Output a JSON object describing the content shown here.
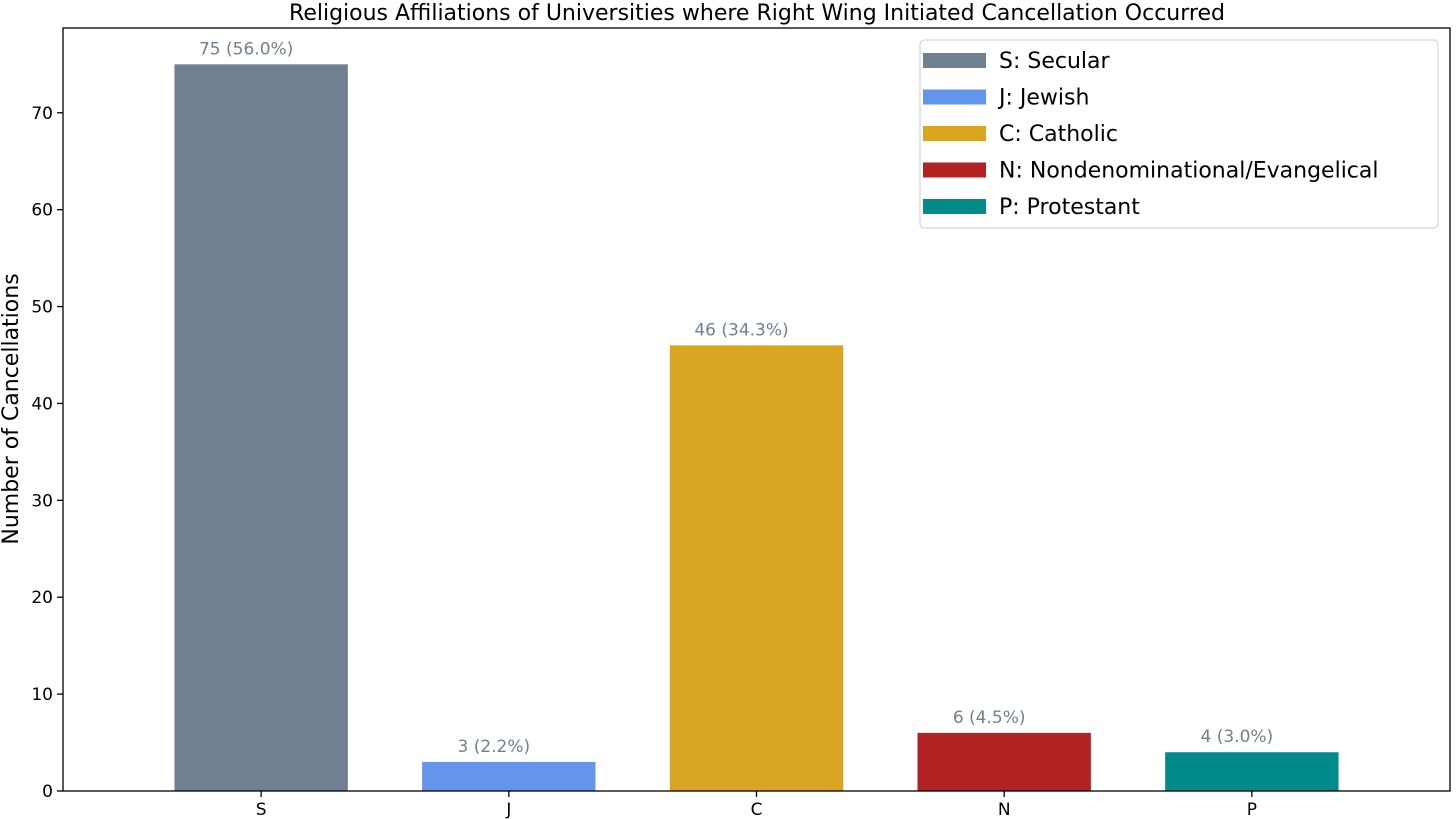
{
  "chart_data": {
    "type": "bar",
    "title": "Religious Affiliations of Universities where Right Wing Initiated Cancellation Occurred",
    "xlabel": "",
    "ylabel": "Number of Cancellations",
    "categories": [
      "S",
      "J",
      "C",
      "N",
      "P"
    ],
    "values": [
      75,
      3,
      46,
      6,
      4
    ],
    "data_labels": [
      "75 (56.0%)",
      "3 (2.2%)",
      "46 (34.3%)",
      "6 (4.5%)",
      "4 (3.0%)"
    ],
    "colors": [
      "#708090",
      "#6495ED",
      "#DAA520",
      "#B22222",
      "#008B8B"
    ],
    "label_color": "#708090",
    "legend": {
      "placement": "top-right",
      "entries": [
        "S: Secular",
        "J: Jewish",
        "C: Catholic",
        "N: Nondenominational/Evangelical",
        "P: Protestant"
      ]
    },
    "yticks": [
      0,
      10,
      20,
      30,
      40,
      50,
      60,
      70
    ],
    "ylim": [
      0,
      78.75
    ],
    "grid": false
  }
}
